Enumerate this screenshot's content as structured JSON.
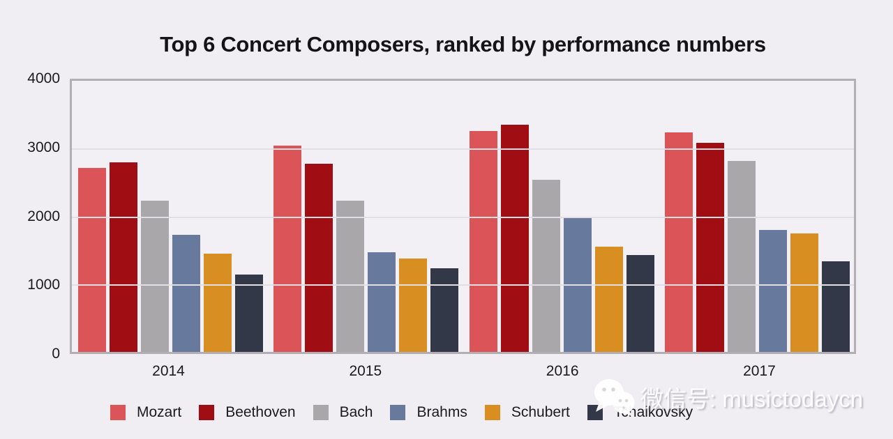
{
  "chart_data": {
    "type": "bar",
    "title": "Top 6 Concert Composers, ranked by performance numbers",
    "categories": [
      "2014",
      "2015",
      "2016",
      "2017"
    ],
    "series": [
      {
        "name": "Mozart",
        "color": "#db5458",
        "values": [
          2710,
          3040,
          3260,
          3240
        ]
      },
      {
        "name": "Beethoven",
        "color": "#a00d12",
        "values": [
          2800,
          2780,
          3350,
          3090
        ]
      },
      {
        "name": "Bach",
        "color": "#a9a7aa",
        "values": [
          2230,
          2230,
          2540,
          2820
        ]
      },
      {
        "name": "Brahms",
        "color": "#68799e",
        "values": [
          1730,
          1470,
          1990,
          1800
        ]
      },
      {
        "name": "Schubert",
        "color": "#d88e20",
        "values": [
          1450,
          1380,
          1550,
          1750
        ]
      },
      {
        "name": "Tchaikovsky",
        "color": "#323847",
        "values": [
          1140,
          1230,
          1430,
          1340
        ]
      }
    ],
    "xlabel": "",
    "ylabel": "",
    "ylim": [
      0,
      4000
    ],
    "yticks": [
      0,
      1000,
      2000,
      3000,
      4000
    ],
    "grid": true,
    "legend_position": "bottom"
  },
  "watermark": {
    "text": "微信号: musictodaycn",
    "icon": "wechat-icon"
  },
  "colors": {
    "background": "#f0eef3",
    "plot_background": "#f2f0f4",
    "frame": "#b1afb3",
    "gridline": "#e2dfe4",
    "text": "#1a1a1c"
  }
}
